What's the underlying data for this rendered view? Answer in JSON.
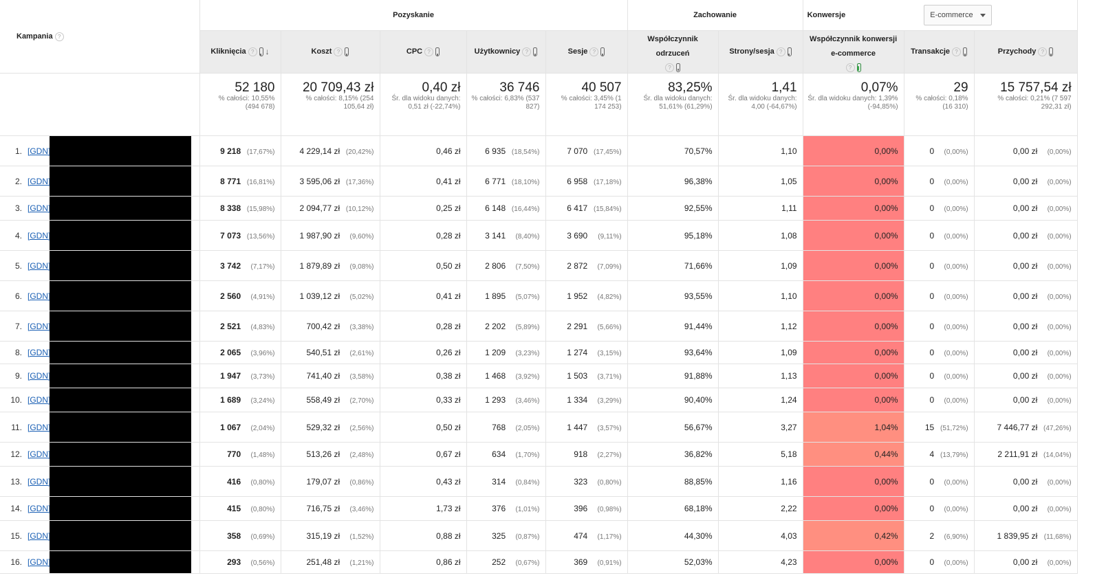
{
  "header": {
    "campaign_label": "Kampania",
    "group_acquisition": "Pozyskanie",
    "group_behavior": "Zachowanie",
    "group_conversions": "Konwersje",
    "conversion_dropdown": "E-commerce",
    "help_glyph": "?"
  },
  "columns": {
    "clicks": "Kliknięcia",
    "cost": "Koszt",
    "cpc": "CPC",
    "users": "Użytkownicy",
    "sessions": "Sesje",
    "bounce": "Współczynnik odrzuceń",
    "pages": "Strony/sesja",
    "conv_rate": "Współczynnik konwersji e-commerce",
    "transactions": "Transakcje",
    "revenue": "Przychody"
  },
  "totals": {
    "clicks": {
      "big": "52 180",
      "sub": "% całości: 10,55% (494 678)"
    },
    "cost": {
      "big": "20 709,43 zł",
      "sub": "% całości: 8,15% (254 105,64 zł)"
    },
    "cpc": {
      "big": "0,40 zł",
      "sub": "Śr. dla widoku danych: 0,51 zł (-22,74%)"
    },
    "users": {
      "big": "36 746",
      "sub": "% całości: 6,83% (537 827)"
    },
    "sessions": {
      "big": "40 507",
      "sub": "% całości: 3,45% (1 174 253)"
    },
    "bounce": {
      "big": "83,25%",
      "sub": "Śr. dla widoku danych: 51,61% (61,29%)"
    },
    "pages": {
      "big": "1,41",
      "sub": "Śr. dla widoku danych: 4,00 (-64,67%)"
    },
    "conv_rate": {
      "big": "0,07%",
      "sub": "Śr. dla widoku danych: 1,39% (-94,85%)"
    },
    "transactions": {
      "big": "29",
      "sub": "% całości: 0,18% (16 310)"
    },
    "revenue": {
      "big": "15 757,54 zł",
      "sub": "% całości: 0,21% (7 597 292,31 zł)"
    }
  },
  "rows": [
    {
      "idx": "1.",
      "camp": "[GDN]",
      "clicks": "9 218",
      "clicks_p": "(17,67%)",
      "cost": "4 229,14 zł",
      "cost_p": "(20,42%)",
      "cpc": "0,46 zł",
      "users": "6 935",
      "users_p": "(18,54%)",
      "sessions": "7 070",
      "sessions_p": "(17,45%)",
      "bounce": "70,57%",
      "pages": "1,10",
      "conv": "0,00%",
      "trans": "0",
      "trans_p": "(0,00%)",
      "rev": "0,00 zł",
      "rev_p": "(0,00%)"
    },
    {
      "idx": "2.",
      "camp": "[GDN]",
      "clicks": "8 771",
      "clicks_p": "(16,81%)",
      "cost": "3 595,06 zł",
      "cost_p": "(17,36%)",
      "cpc": "0,41 zł",
      "users": "6 771",
      "users_p": "(18,10%)",
      "sessions": "6 958",
      "sessions_p": "(17,18%)",
      "bounce": "96,38%",
      "pages": "1,05",
      "conv": "0,00%",
      "trans": "0",
      "trans_p": "(0,00%)",
      "rev": "0,00 zł",
      "rev_p": "(0,00%)"
    },
    {
      "idx": "3.",
      "camp": "[GDN]",
      "clicks": "8 338",
      "clicks_p": "(15,98%)",
      "cost": "2 094,77 zł",
      "cost_p": "(10,12%)",
      "cpc": "0,25 zł",
      "users": "6 148",
      "users_p": "(16,44%)",
      "sessions": "6 417",
      "sessions_p": "(15,84%)",
      "bounce": "92,55%",
      "pages": "1,11",
      "conv": "0,00%",
      "trans": "0",
      "trans_p": "(0,00%)",
      "rev": "0,00 zł",
      "rev_p": "(0,00%)"
    },
    {
      "idx": "4.",
      "camp": "[GDN]",
      "clicks": "7 073",
      "clicks_p": "(13,56%)",
      "cost": "1 987,90 zł",
      "cost_p": "(9,60%)",
      "cpc": "0,28 zł",
      "users": "3 141",
      "users_p": "(8,40%)",
      "sessions": "3 690",
      "sessions_p": "(9,11%)",
      "bounce": "95,18%",
      "pages": "1,08",
      "conv": "0,00%",
      "trans": "0",
      "trans_p": "(0,00%)",
      "rev": "0,00 zł",
      "rev_p": "(0,00%)"
    },
    {
      "idx": "5.",
      "camp": "[GDN]",
      "clicks": "3 742",
      "clicks_p": "(7,17%)",
      "cost": "1 879,89 zł",
      "cost_p": "(9,08%)",
      "cpc": "0,50 zł",
      "users": "2 806",
      "users_p": "(7,50%)",
      "sessions": "2 872",
      "sessions_p": "(7,09%)",
      "bounce": "71,66%",
      "pages": "1,09",
      "conv": "0,00%",
      "trans": "0",
      "trans_p": "(0,00%)",
      "rev": "0,00 zł",
      "rev_p": "(0,00%)"
    },
    {
      "idx": "6.",
      "camp": "[GDN]",
      "clicks": "2 560",
      "clicks_p": "(4,91%)",
      "cost": "1 039,12 zł",
      "cost_p": "(5,02%)",
      "cpc": "0,41 zł",
      "users": "1 895",
      "users_p": "(5,07%)",
      "sessions": "1 952",
      "sessions_p": "(4,82%)",
      "bounce": "93,55%",
      "pages": "1,10",
      "conv": "0,00%",
      "trans": "0",
      "trans_p": "(0,00%)",
      "rev": "0,00 zł",
      "rev_p": "(0,00%)"
    },
    {
      "idx": "7.",
      "camp": "[GDN]",
      "clicks": "2 521",
      "clicks_p": "(4,83%)",
      "cost": "700,42 zł",
      "cost_p": "(3,38%)",
      "cpc": "0,28 zł",
      "users": "2 202",
      "users_p": "(5,89%)",
      "sessions": "2 291",
      "sessions_p": "(5,66%)",
      "bounce": "91,44%",
      "pages": "1,12",
      "conv": "0,00%",
      "trans": "0",
      "trans_p": "(0,00%)",
      "rev": "0,00 zł",
      "rev_p": "(0,00%)"
    },
    {
      "idx": "8.",
      "camp": "[GDN]",
      "clicks": "2 065",
      "clicks_p": "(3,96%)",
      "cost": "540,51 zł",
      "cost_p": "(2,61%)",
      "cpc": "0,26 zł",
      "users": "1 209",
      "users_p": "(3,23%)",
      "sessions": "1 274",
      "sessions_p": "(3,15%)",
      "bounce": "93,64%",
      "pages": "1,09",
      "conv": "0,00%",
      "trans": "0",
      "trans_p": "(0,00%)",
      "rev": "0,00 zł",
      "rev_p": "(0,00%)"
    },
    {
      "idx": "9.",
      "camp": "[GDN]",
      "clicks": "1 947",
      "clicks_p": "(3,73%)",
      "cost": "741,40 zł",
      "cost_p": "(3,58%)",
      "cpc": "0,38 zł",
      "users": "1 468",
      "users_p": "(3,92%)",
      "sessions": "1 503",
      "sessions_p": "(3,71%)",
      "bounce": "91,88%",
      "pages": "1,13",
      "conv": "0,00%",
      "trans": "0",
      "trans_p": "(0,00%)",
      "rev": "0,00 zł",
      "rev_p": "(0,00%)"
    },
    {
      "idx": "10.",
      "camp": "[GDN]",
      "clicks": "1 689",
      "clicks_p": "(3,24%)",
      "cost": "558,49 zł",
      "cost_p": "(2,70%)",
      "cpc": "0,33 zł",
      "users": "1 293",
      "users_p": "(3,46%)",
      "sessions": "1 334",
      "sessions_p": "(3,29%)",
      "bounce": "90,40%",
      "pages": "1,24",
      "conv": "0,00%",
      "trans": "0",
      "trans_p": "(0,00%)",
      "rev": "0,00 zł",
      "rev_p": "(0,00%)"
    },
    {
      "idx": "11.",
      "camp": "[GDN]",
      "clicks": "1 067",
      "clicks_p": "(2,04%)",
      "cost": "529,32 zł",
      "cost_p": "(2,56%)",
      "cpc": "0,50 zł",
      "users": "768",
      "users_p": "(2,05%)",
      "sessions": "1 447",
      "sessions_p": "(3,57%)",
      "bounce": "56,67%",
      "pages": "3,27",
      "conv": "1,04%",
      "trans": "15",
      "trans_p": "(51,72%)",
      "rev": "7 446,77 zł",
      "rev_p": "(47,26%)"
    },
    {
      "idx": "12.",
      "camp": "[GDN]",
      "clicks": "770",
      "clicks_p": "(1,48%)",
      "cost": "513,26 zł",
      "cost_p": "(2,48%)",
      "cpc": "0,67 zł",
      "users": "634",
      "users_p": "(1,70%)",
      "sessions": "918",
      "sessions_p": "(2,27%)",
      "bounce": "36,82%",
      "pages": "5,18",
      "conv": "0,44%",
      "trans": "4",
      "trans_p": "(13,79%)",
      "rev": "2 211,91 zł",
      "rev_p": "(14,04%)"
    },
    {
      "idx": "13.",
      "camp": "[GDN]",
      "clicks": "416",
      "clicks_p": "(0,80%)",
      "cost": "179,07 zł",
      "cost_p": "(0,86%)",
      "cpc": "0,43 zł",
      "users": "314",
      "users_p": "(0,84%)",
      "sessions": "323",
      "sessions_p": "(0,80%)",
      "bounce": "88,85%",
      "pages": "1,16",
      "conv": "0,00%",
      "trans": "0",
      "trans_p": "(0,00%)",
      "rev": "0,00 zł",
      "rev_p": "(0,00%)"
    },
    {
      "idx": "14.",
      "camp": "[GDN]",
      "clicks": "415",
      "clicks_p": "(0,80%)",
      "cost": "716,75 zł",
      "cost_p": "(3,46%)",
      "cpc": "1,73 zł",
      "users": "376",
      "users_p": "(1,01%)",
      "sessions": "396",
      "sessions_p": "(0,98%)",
      "bounce": "68,18%",
      "pages": "2,22",
      "conv": "0,00%",
      "trans": "0",
      "trans_p": "(0,00%)",
      "rev": "0,00 zł",
      "rev_p": "(0,00%)"
    },
    {
      "idx": "15.",
      "camp": "[GDN]",
      "clicks": "358",
      "clicks_p": "(0,69%)",
      "cost": "315,19 zł",
      "cost_p": "(1,52%)",
      "cpc": "0,88 zł",
      "users": "325",
      "users_p": "(0,87%)",
      "sessions": "474",
      "sessions_p": "(1,17%)",
      "bounce": "44,30%",
      "pages": "4,03",
      "conv": "0,42%",
      "trans": "2",
      "trans_p": "(6,90%)",
      "rev": "1 839,95 zł",
      "rev_p": "(11,68%)"
    },
    {
      "idx": "16.",
      "camp": "[GDN]",
      "clicks": "293",
      "clicks_p": "(0,56%)",
      "cost": "251,48 zł",
      "cost_p": "(1,21%)",
      "cpc": "0,86 zł",
      "users": "252",
      "users_p": "(0,67%)",
      "sessions": "369",
      "sessions_p": "(0,91%)",
      "bounce": "52,03%",
      "pages": "4,23",
      "conv": "0,00%",
      "trans": "0",
      "trans_p": "(0,00%)",
      "rev": "0,00 zł",
      "rev_p": "(0,00%)"
    }
  ],
  "colors": {
    "conv_highlight": "#ff8080",
    "header_bg": "#ececec",
    "link": "#1a5fb4"
  }
}
